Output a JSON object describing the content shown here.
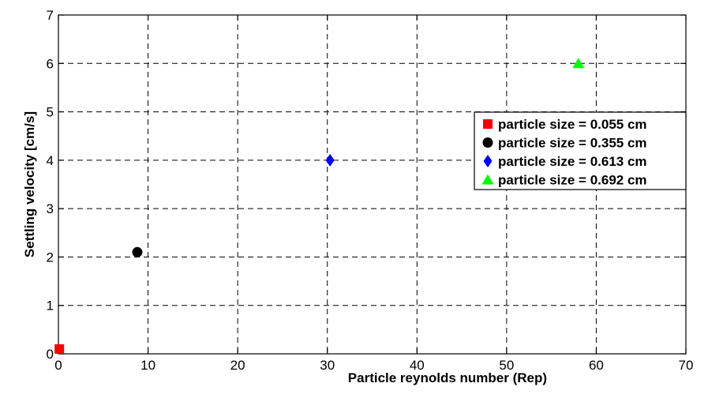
{
  "chart_data": {
    "type": "scatter",
    "xlabel": "Particle reynolds number (Rep)",
    "ylabel": "Settling velocity [cm/s]",
    "xlim": [
      0,
      70
    ],
    "ylim": [
      0,
      7
    ],
    "xticks": [
      0,
      10,
      20,
      30,
      40,
      50,
      60,
      70
    ],
    "yticks": [
      0,
      1,
      2,
      3,
      4,
      5,
      6,
      7
    ],
    "xtick_labels": [
      "0",
      "10",
      "20",
      "30",
      "40",
      "50",
      "60",
      "70"
    ],
    "ytick_labels": [
      "0",
      "1",
      "2",
      "3",
      "4",
      "5",
      "6",
      "7"
    ],
    "grid": true,
    "grid_style": "dashed",
    "legend_placement": "right",
    "series": [
      {
        "name": "particle size = 0.055 cm",
        "marker": "square",
        "color": "#ff0000",
        "x": [
          0.1
        ],
        "y": [
          0.1
        ]
      },
      {
        "name": "particle size = 0.355 cm",
        "marker": "circle",
        "color": "#000000",
        "x": [
          8.8
        ],
        "y": [
          2.1
        ]
      },
      {
        "name": "particle size = 0.613 cm",
        "marker": "diamond",
        "color": "#0000ff",
        "x": [
          30.3
        ],
        "y": [
          4.0
        ]
      },
      {
        "name": "particle size = 0.692 cm",
        "marker": "triangle",
        "color": "#00ff00",
        "x": [
          58.0
        ],
        "y": [
          6.0
        ]
      }
    ]
  }
}
